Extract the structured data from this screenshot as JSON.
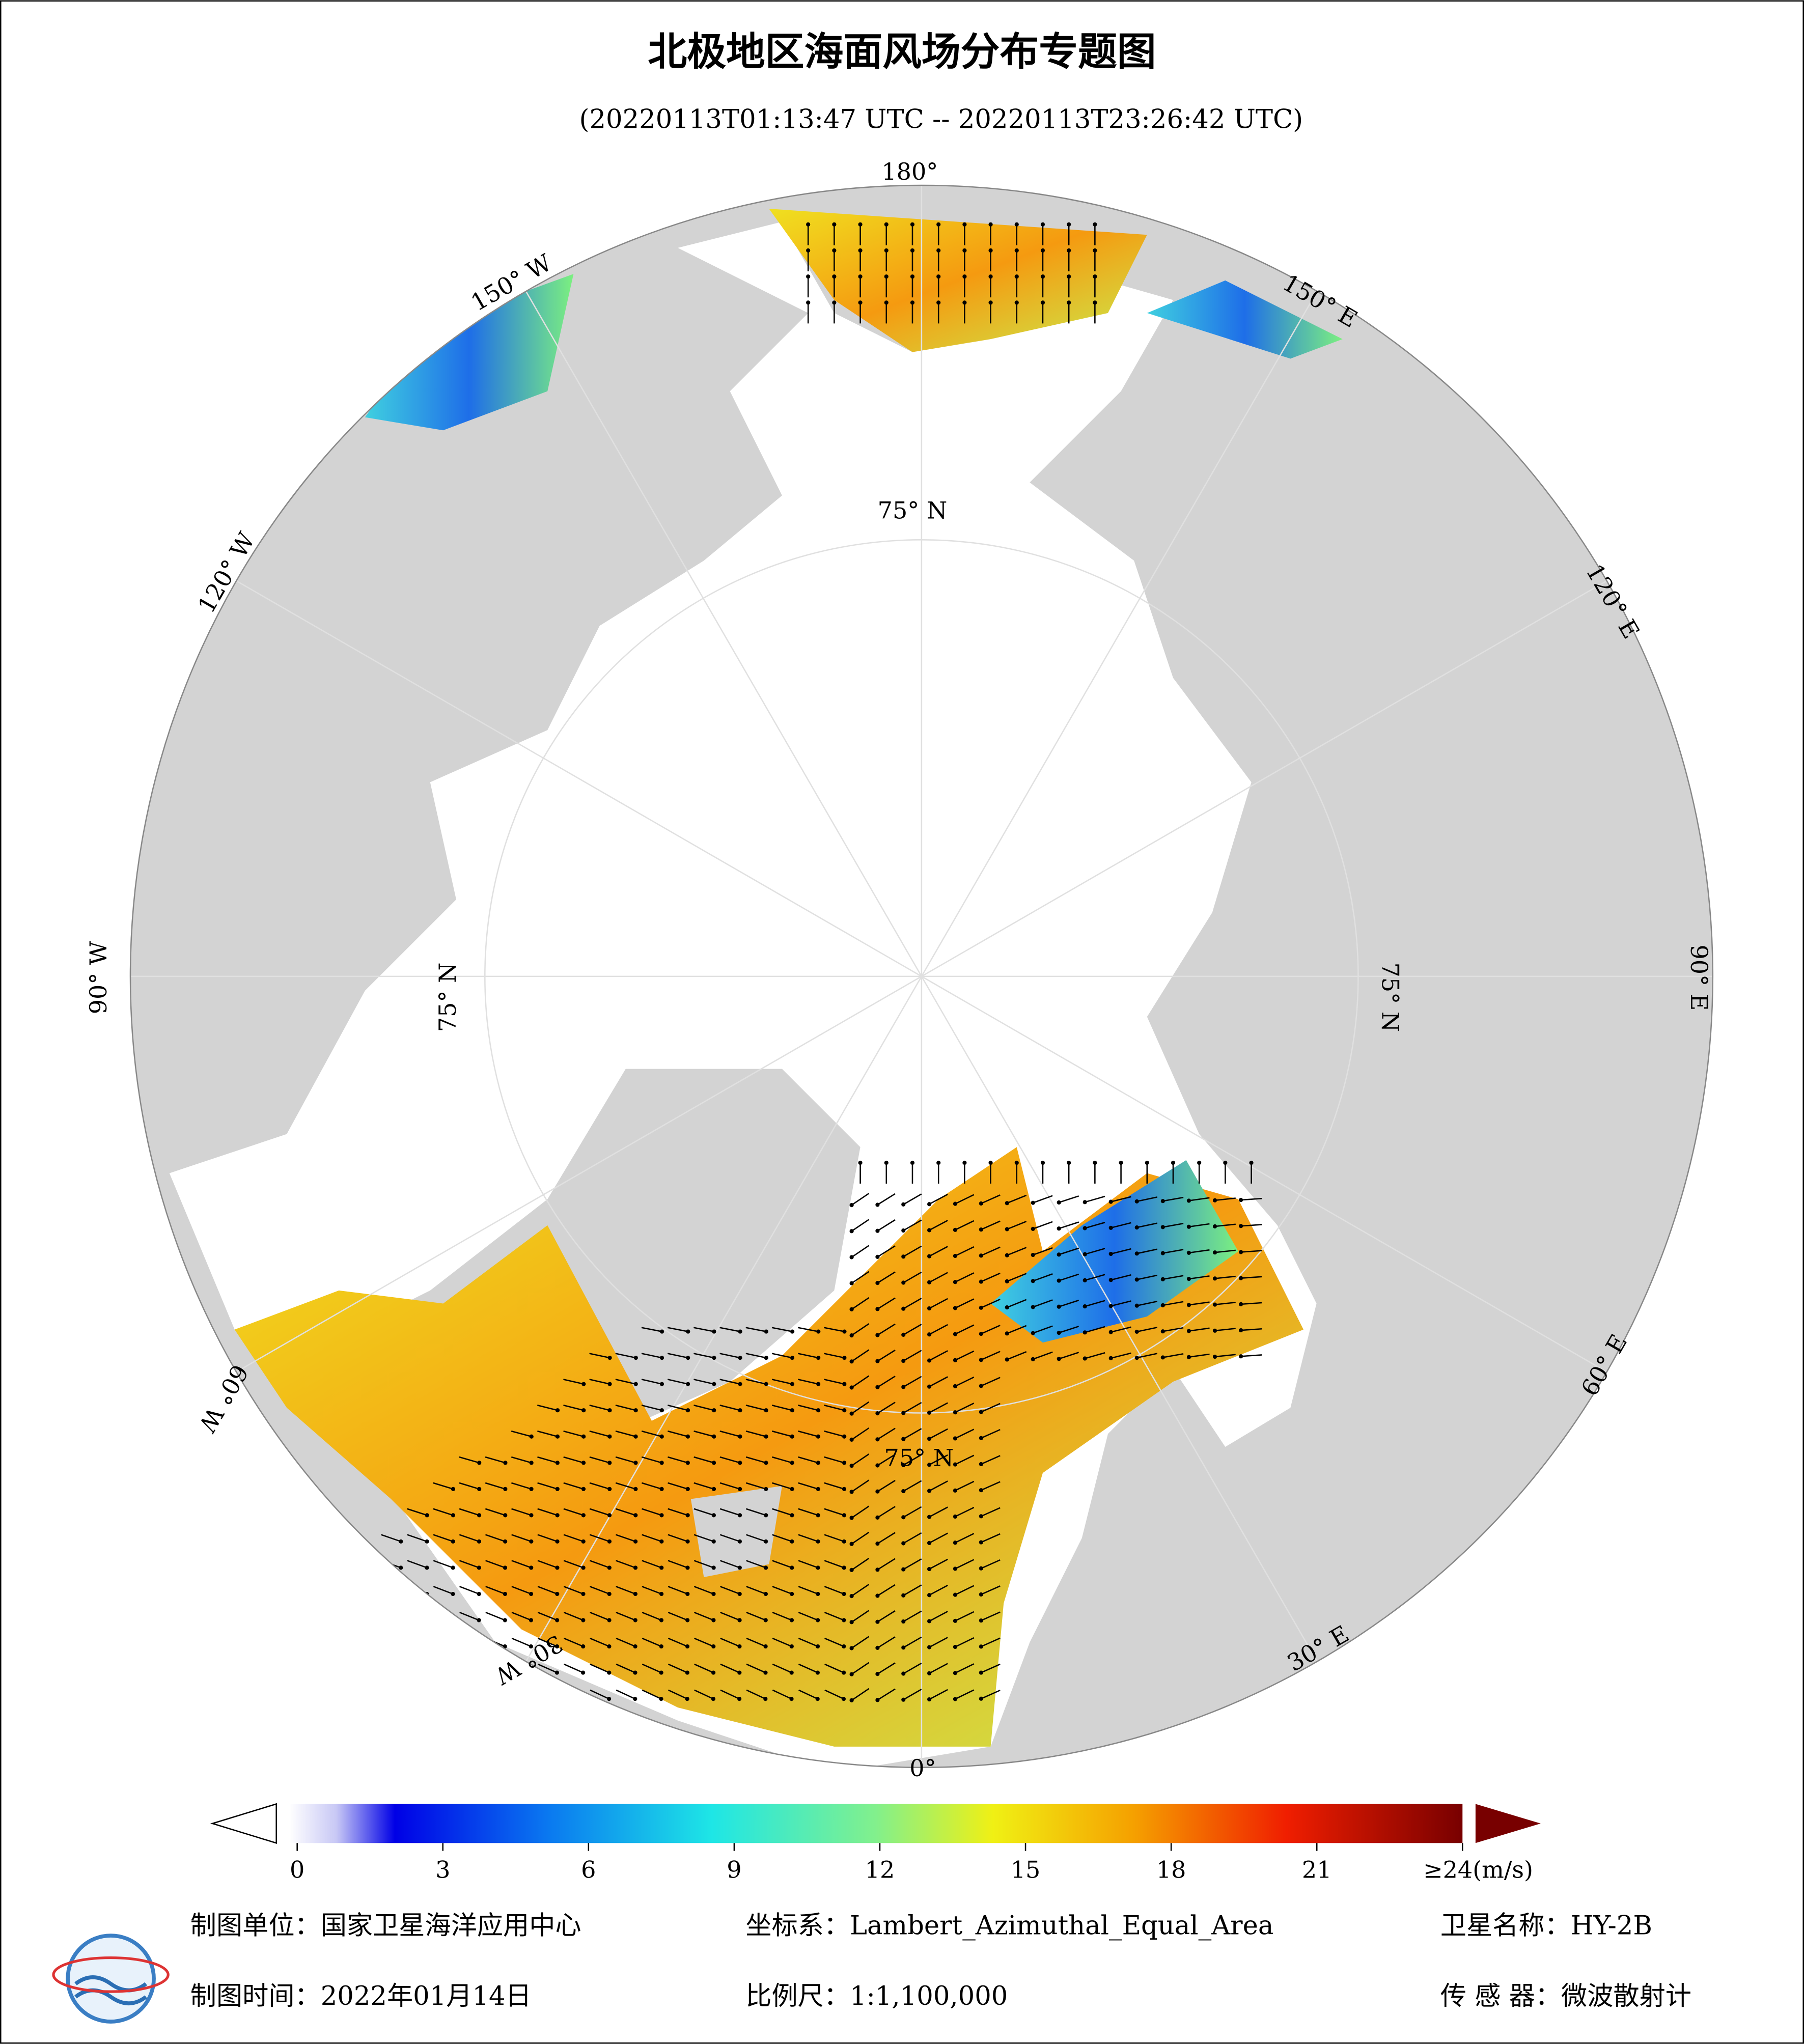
{
  "header": {
    "title": "北极地区海面风场分布专题图",
    "subtitle": "(20220113T01:13:47 UTC -- 20220113T23:26:42 UTC)"
  },
  "map": {
    "longitude_labels": [
      "180°",
      "150° W",
      "150° E",
      "120° W",
      "120° E",
      "90° W",
      "90° E",
      "60° W",
      "60° E",
      "30° W",
      "30° E",
      "0°"
    ],
    "latitude_labels": [
      "75° N",
      "75° N",
      "75° N",
      "75° N"
    ]
  },
  "colorbar": {
    "lim": [
      0,
      24
    ],
    "ticks": [
      0,
      3,
      6,
      9,
      12,
      15,
      18,
      {
        "value": 21,
        "label": "21"
      },
      {
        "value": 24,
        "label": "≥24(m/s)"
      }
    ]
  },
  "footer": {
    "unit": "制图单位：国家卫星海洋应用中心",
    "time": "制图时间：2022年01月14日",
    "crs": "坐标系：Lambert_Azimuthal_Equal_Area",
    "scale": "比例尺：1:1,100,000",
    "satellite": "卫星名称：HY-2B",
    "sensor": "传 感 器：微波散射计"
  }
}
